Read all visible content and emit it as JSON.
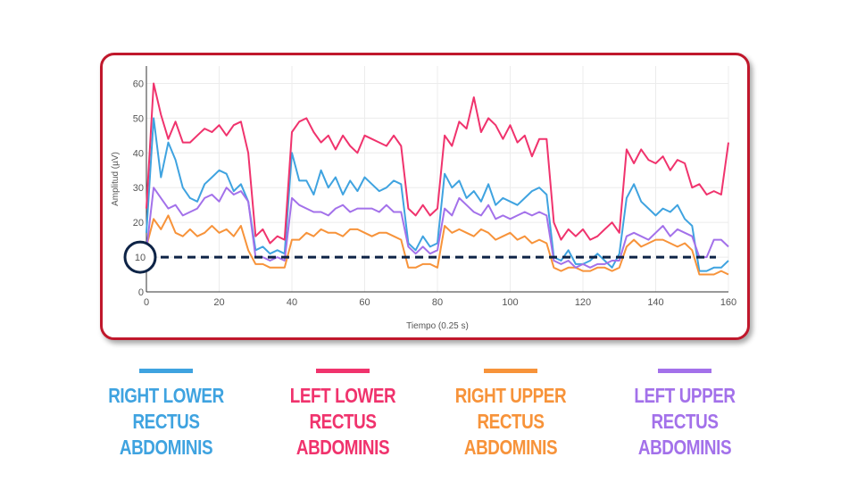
{
  "chart_data": {
    "type": "line",
    "xlabel": "Tiempo (0.25 s)",
    "ylabel": "Amplitud (µV)",
    "xlim": [
      0,
      160
    ],
    "ylim": [
      0,
      65
    ],
    "xticks": [
      0,
      20,
      40,
      60,
      80,
      100,
      120,
      140,
      160
    ],
    "yticks": [
      0,
      10,
      20,
      30,
      40,
      50,
      60
    ],
    "grid": true,
    "threshold": {
      "value": 10,
      "color": "#0d2346",
      "label": "10",
      "style": "dashed"
    },
    "x": [
      0,
      2,
      4,
      6,
      8,
      10,
      12,
      14,
      16,
      18,
      20,
      22,
      24,
      26,
      28,
      30,
      32,
      34,
      36,
      38,
      40,
      42,
      44,
      46,
      48,
      50,
      52,
      54,
      56,
      58,
      60,
      62,
      64,
      66,
      68,
      70,
      72,
      74,
      76,
      78,
      80,
      82,
      84,
      86,
      88,
      90,
      92,
      94,
      96,
      98,
      100,
      102,
      104,
      106,
      108,
      110,
      112,
      114,
      116,
      118,
      120,
      122,
      124,
      126,
      128,
      130,
      132,
      134,
      136,
      138,
      140,
      142,
      144,
      146,
      148,
      150,
      152,
      154,
      156,
      158,
      160
    ],
    "series": [
      {
        "name": "RIGHT LOWER RECTUS ABDOMINIS",
        "color": "#3fa3e0",
        "values": [
          17,
          50,
          33,
          43,
          38,
          30,
          27,
          26,
          31,
          33,
          35,
          34,
          29,
          31,
          26,
          12,
          13,
          11,
          12,
          11,
          40,
          32,
          32,
          28,
          35,
          30,
          33,
          28,
          32,
          29,
          33,
          31,
          29,
          30,
          32,
          31,
          14,
          12,
          16,
          13,
          14,
          34,
          30,
          32,
          27,
          29,
          26,
          31,
          25,
          27,
          26,
          25,
          27,
          29,
          30,
          28,
          10,
          9,
          12,
          8,
          8,
          9,
          11,
          9,
          7,
          11,
          27,
          31,
          26,
          24,
          22,
          24,
          23,
          25,
          21,
          19,
          6,
          6,
          7,
          7,
          9
        ]
      },
      {
        "name": "LEFT LOWER RECTUS ABDOMINIS",
        "color": "#f0336d",
        "values": [
          24,
          60,
          51,
          44,
          49,
          43,
          43,
          45,
          47,
          46,
          48,
          45,
          48,
          49,
          40,
          16,
          18,
          14,
          16,
          15,
          46,
          49,
          50,
          46,
          43,
          45,
          41,
          45,
          42,
          40,
          45,
          44,
          43,
          42,
          45,
          42,
          24,
          22,
          25,
          22,
          24,
          45,
          42,
          49,
          47,
          56,
          46,
          50,
          48,
          44,
          48,
          43,
          45,
          39,
          44,
          44,
          20,
          15,
          18,
          16,
          18,
          15,
          16,
          18,
          20,
          17,
          41,
          37,
          41,
          38,
          37,
          39,
          35,
          38,
          37,
          30,
          31,
          28,
          29,
          28,
          43
        ]
      },
      {
        "name": "RIGHT UPPER RECTUS ABDOMINIS",
        "color": "#f7933a",
        "values": [
          13,
          21,
          18,
          22,
          17,
          16,
          18,
          16,
          17,
          19,
          17,
          18,
          16,
          19,
          12,
          8,
          8,
          7,
          7,
          7,
          15,
          15,
          17,
          16,
          18,
          17,
          17,
          16,
          18,
          18,
          17,
          16,
          17,
          17,
          16,
          15,
          7,
          7,
          8,
          8,
          7,
          19,
          17,
          18,
          17,
          16,
          18,
          17,
          15,
          16,
          17,
          15,
          16,
          14,
          15,
          14,
          7,
          6,
          7,
          7,
          6,
          6,
          7,
          7,
          6,
          7,
          13,
          15,
          13,
          14,
          15,
          15,
          14,
          13,
          14,
          12,
          5,
          5,
          5,
          6,
          5
        ]
      },
      {
        "name": "LEFT UPPER RECTUS ABDOMINIS",
        "color": "#a371ea",
        "values": [
          12,
          30,
          27,
          24,
          25,
          22,
          23,
          24,
          27,
          28,
          26,
          30,
          28,
          29,
          26,
          10,
          10,
          9,
          10,
          9,
          27,
          25,
          24,
          23,
          23,
          22,
          24,
          25,
          23,
          24,
          24,
          24,
          23,
          25,
          23,
          23,
          13,
          11,
          13,
          11,
          12,
          24,
          22,
          27,
          25,
          23,
          22,
          25,
          21,
          22,
          21,
          22,
          23,
          22,
          23,
          22,
          9,
          8,
          9,
          7,
          8,
          7,
          8,
          8,
          9,
          9,
          16,
          17,
          16,
          15,
          17,
          19,
          16,
          18,
          17,
          16,
          10,
          10,
          15,
          15,
          13
        ]
      }
    ]
  },
  "legend": [
    {
      "line1": "RIGHT LOWER",
      "line2": "RECTUS ABDOMINIS",
      "color": "#3fa3e0"
    },
    {
      "line1": "LEFT LOWER",
      "line2": "RECTUS ABDOMINIS",
      "color": "#f0336d"
    },
    {
      "line1": "RIGHT UPPER",
      "line2": "RECTUS ABDOMINIS",
      "color": "#f7933a"
    },
    {
      "line1": "LEFT UPPER",
      "line2": "RECTUS ABDOMINIS",
      "color": "#a371ea"
    }
  ],
  "frame_color": "#c0182c"
}
